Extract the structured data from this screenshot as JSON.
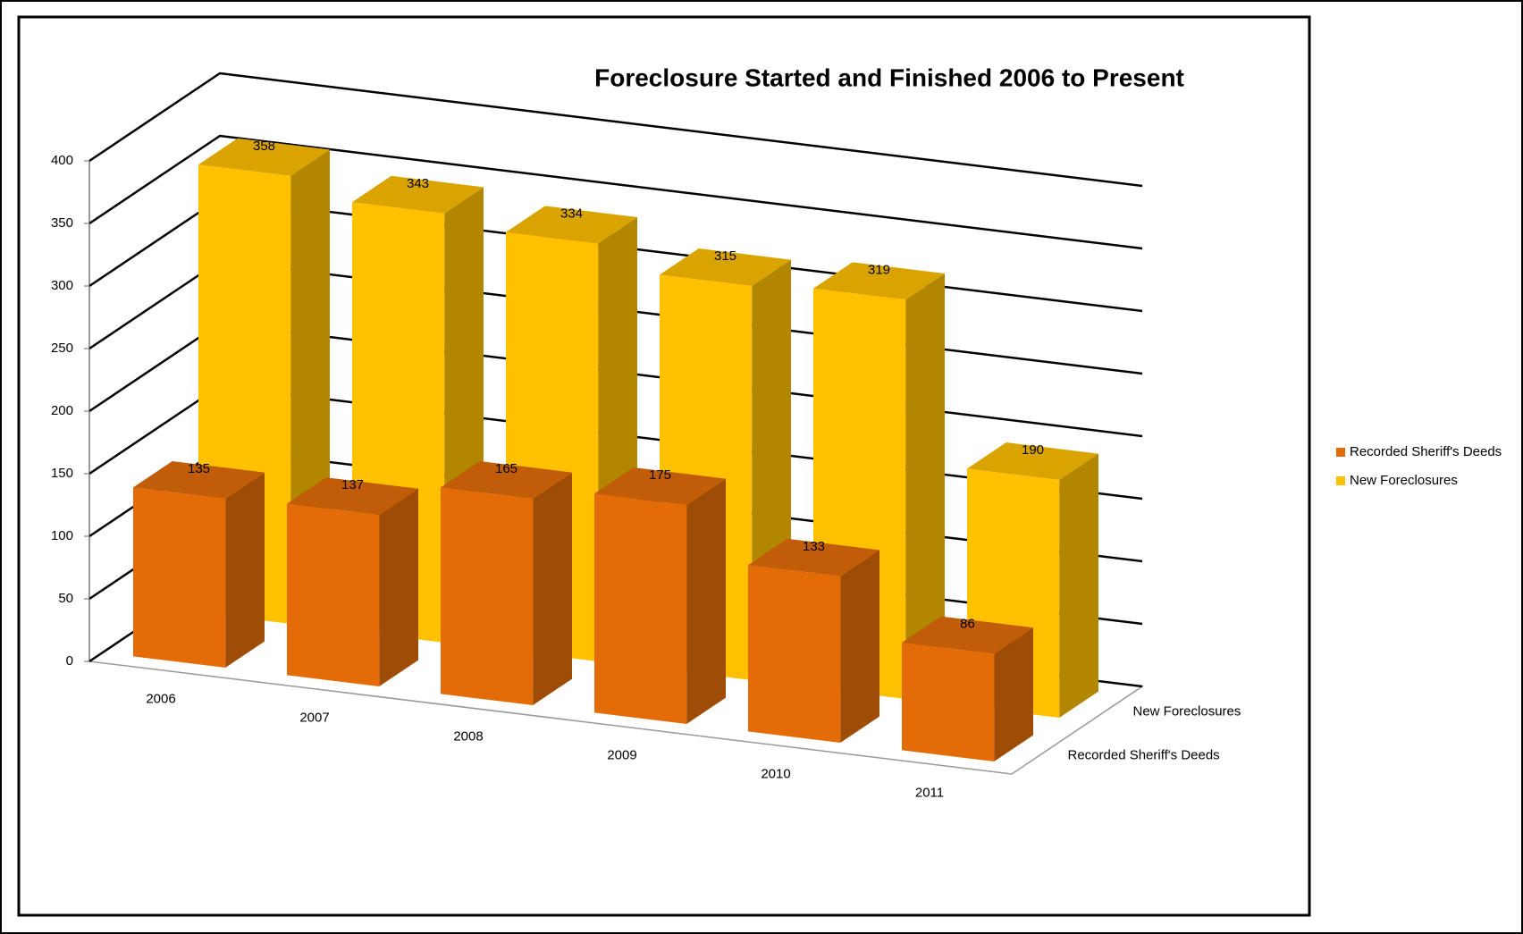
{
  "chart_data": {
    "type": "bar3d",
    "title": "Foreclosure Started and Finished 2006 to Present",
    "categories": [
      "2006",
      "2007",
      "2008",
      "2009",
      "2010",
      "2011"
    ],
    "series": [
      {
        "name": "Recorded Sheriff's Deeds",
        "color": "#e36c09",
        "values": [
          135,
          137,
          165,
          175,
          133,
          86
        ]
      },
      {
        "name": "New Foreclosures",
        "color": "#ffc000",
        "values": [
          358,
          343,
          334,
          315,
          319,
          190
        ]
      }
    ],
    "ylim": [
      0,
      400
    ],
    "yticks": [
      0,
      50,
      100,
      150,
      200,
      250,
      300,
      350,
      400
    ],
    "grid": true,
    "legend": "right"
  }
}
